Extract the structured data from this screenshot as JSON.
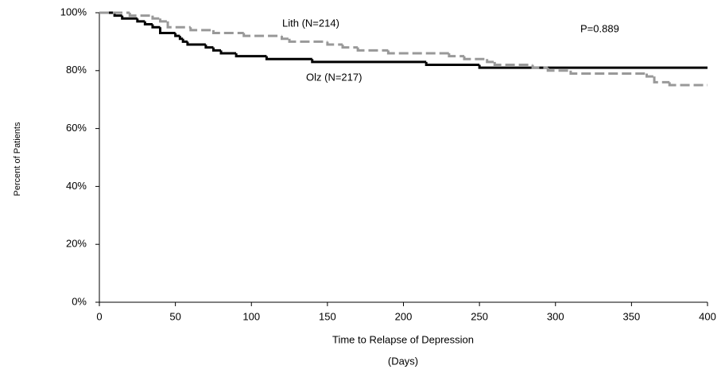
{
  "chart_data": {
    "type": "step",
    "xlabel": "Time to Relapse of Depression",
    "xlabel_sub": "(Days)",
    "ylabel": "Percent of Patients",
    "xlim": [
      0,
      400
    ],
    "xticks": [
      0,
      50,
      100,
      150,
      200,
      250,
      300,
      350,
      400
    ],
    "ylim": [
      0,
      100
    ],
    "yticks": [
      {
        "value": 0,
        "label": "0%"
      },
      {
        "value": 20,
        "label": "20%"
      },
      {
        "value": 40,
        "label": "40%"
      },
      {
        "value": 60,
        "label": "60%"
      },
      {
        "value": 80,
        "label": "80%"
      },
      {
        "value": 100,
        "label": "100%"
      }
    ],
    "grid": false,
    "series": [
      {
        "name": "Olz (N=217)",
        "color": "#000000",
        "dashed": false,
        "x": [
          0,
          10,
          15,
          25,
          30,
          35,
          40,
          50,
          53,
          55,
          58,
          70,
          75,
          80,
          90,
          110,
          140,
          215,
          250,
          400
        ],
        "values": [
          100,
          99,
          98,
          97,
          96,
          95,
          93,
          92,
          91,
          90,
          89,
          88,
          87,
          86,
          85,
          84,
          83,
          82,
          81,
          81
        ]
      },
      {
        "name": "Lith (N=214)",
        "color": "#999999",
        "dashed": true,
        "x": [
          0,
          20,
          35,
          40,
          45,
          60,
          75,
          95,
          120,
          125,
          150,
          160,
          170,
          190,
          230,
          240,
          255,
          260,
          285,
          295,
          310,
          360,
          365,
          375,
          400
        ],
        "values": [
          100,
          99,
          98,
          97,
          95,
          94,
          93,
          92,
          91,
          90,
          89,
          88,
          87,
          86,
          85,
          84,
          83,
          82,
          81,
          80,
          79,
          78,
          76,
          75,
          75
        ]
      }
    ],
    "annotations": [
      "P=0.889"
    ]
  }
}
